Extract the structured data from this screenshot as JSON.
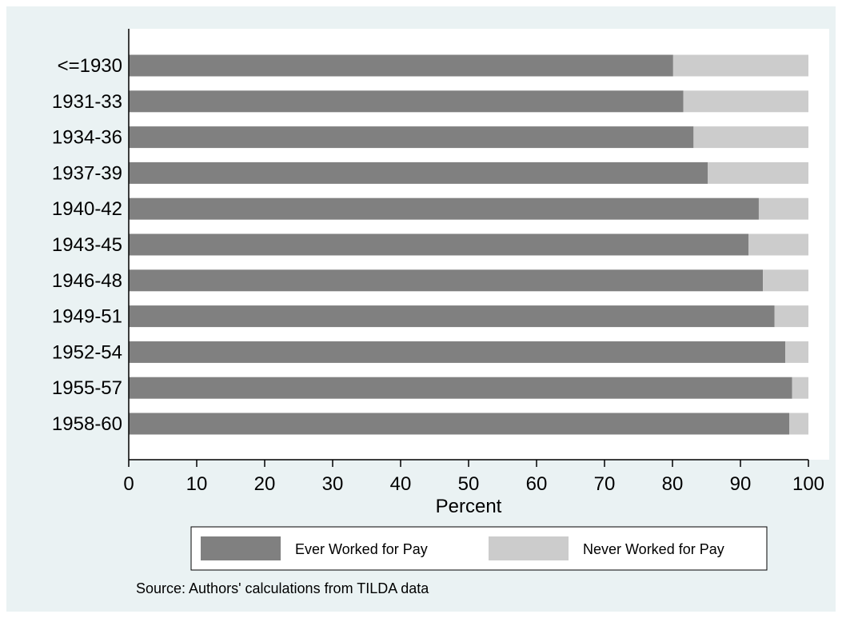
{
  "chart_data": {
    "type": "bar",
    "orientation": "horizontal",
    "stacked": true,
    "categories": [
      "<=1930",
      "1931-33",
      "1934-36",
      "1937-39",
      "1940-42",
      "1943-45",
      "1946-48",
      "1949-51",
      "1952-54",
      "1955-57",
      "1958-60"
    ],
    "series": [
      {
        "name": "Ever Worked for Pay",
        "color": "#808080",
        "values": [
          80.1,
          81.6,
          83.1,
          85.2,
          92.7,
          91.2,
          93.3,
          95.0,
          96.6,
          97.6,
          97.2
        ]
      },
      {
        "name": "Never Worked for Pay",
        "color": "#cccccc",
        "values": [
          19.9,
          18.4,
          16.9,
          14.8,
          7.3,
          8.8,
          6.7,
          5.0,
          3.4,
          2.4,
          2.8
        ]
      }
    ],
    "xlabel": "Percent",
    "xlim": [
      0,
      100
    ],
    "xticks": [
      "0",
      "10",
      "20",
      "30",
      "40",
      "50",
      "60",
      "70",
      "80",
      "90",
      "100"
    ],
    "grid": false,
    "legend_position": "bottom",
    "source_note": "Source: Authors' calculations from TILDA data"
  }
}
